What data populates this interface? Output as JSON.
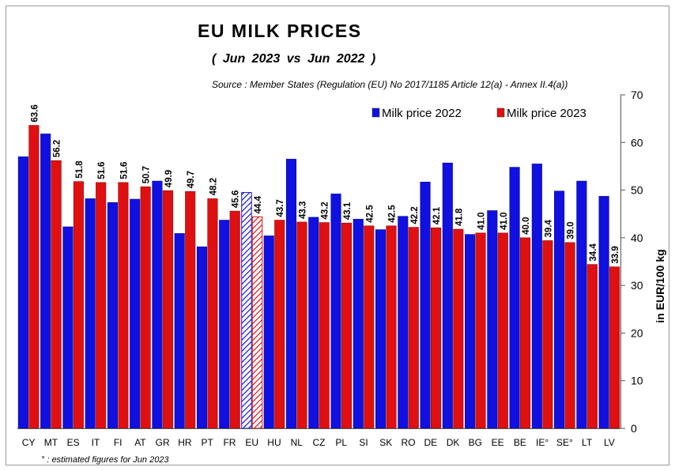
{
  "title": "EU  MILK  PRICES",
  "subtitle": "( Jun 2023   vs   Jun 2022 )",
  "source": "Source : Member States (Regulation (EU) No 2017/1185 Article 12(a) - Annex II.4(a))",
  "footnote": "° : estimated figures for Jun 2023",
  "colors": {
    "series_2022": "#1010e0",
    "series_2023": "#e01010",
    "eu_2022": "#2a2ae6",
    "eu_2023": "#e62a2a"
  },
  "chart_data": {
    "type": "bar",
    "title": "EU MILK PRICES",
    "ylabel": "in EUR/100 kg",
    "xlabel": "",
    "ylim": [
      0,
      70
    ],
    "yticks": [
      "0",
      "10",
      "20",
      "30",
      "40",
      "50",
      "60",
      "70"
    ],
    "grid": false,
    "legend": "top-right",
    "hatched_category": "EU",
    "categories": [
      "CY",
      "MT",
      "ES",
      "IT",
      "FI",
      "AT",
      "GR",
      "HR",
      "PT",
      "FR",
      "EU",
      "HU",
      "NL",
      "CZ",
      "PL",
      "SI",
      "SK",
      "RO",
      "DE",
      "DK",
      "BG",
      "EE",
      "BE",
      "IE°",
      "SE°",
      "LT",
      "LV"
    ],
    "series": [
      {
        "name": "Milk price 2022",
        "labeled": false,
        "values": [
          57.0,
          61.8,
          42.3,
          48.2,
          47.4,
          48.1,
          51.9,
          40.9,
          38.1,
          43.7,
          49.5,
          40.4,
          56.5,
          44.3,
          49.2,
          43.9,
          41.7,
          44.5,
          51.7,
          55.7,
          40.7,
          45.7,
          54.8,
          55.5,
          49.8,
          51.9,
          48.7
        ]
      },
      {
        "name": "Milk price 2023",
        "labeled": true,
        "values": [
          63.6,
          56.2,
          51.8,
          51.6,
          51.6,
          50.7,
          49.9,
          49.7,
          48.2,
          45.6,
          44.4,
          43.7,
          43.3,
          43.2,
          43.1,
          42.5,
          42.5,
          42.2,
          42.1,
          41.8,
          41.0,
          41.0,
          40.0,
          39.4,
          39.0,
          34.4,
          33.9
        ],
        "labels": [
          "63.6",
          "56.2",
          "51.8",
          "51.6",
          "51.6",
          "50.7",
          "49.9",
          "49.7",
          "48.2",
          "45.6",
          "44.4",
          "43.7",
          "43.3",
          "43.2",
          "43.1",
          "42.5",
          "42.5",
          "42.2",
          "42.1",
          "41.8",
          "41.0",
          "41.0",
          "40.0",
          "39.4",
          "39.0",
          "34.4",
          "33.9"
        ]
      }
    ]
  }
}
